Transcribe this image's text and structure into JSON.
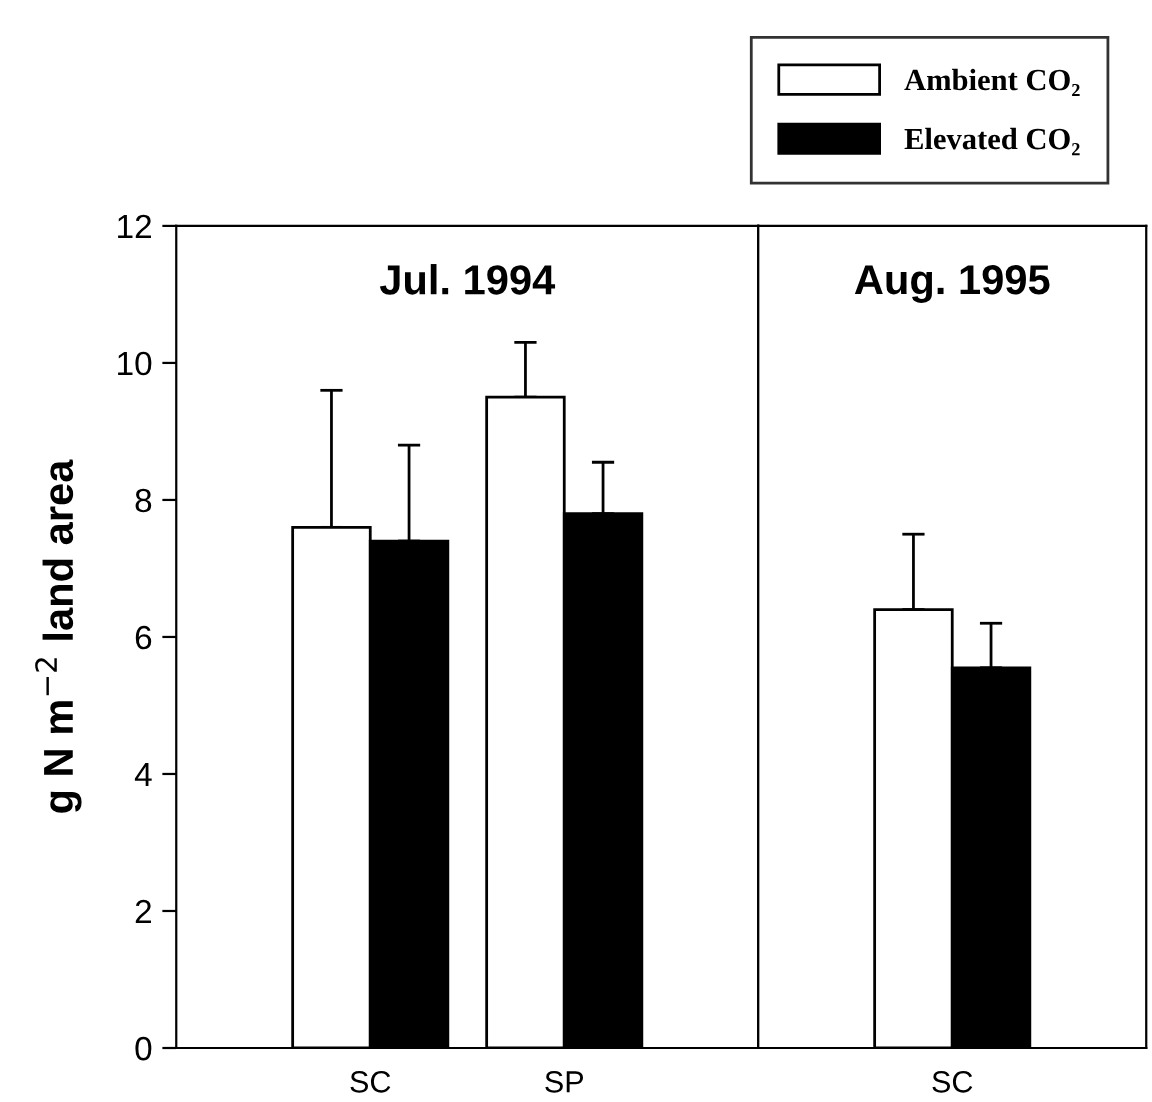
{
  "chart_data": [
    {
      "type": "bar",
      "title": "Jul. 1994",
      "ylabel": "g N m$^{−2}$ land area",
      "categories": [
        "SC",
        "SP"
      ],
      "ylim": [
        0,
        12
      ],
      "yticks": [
        0,
        2,
        4,
        6,
        8,
        10,
        12
      ],
      "grid": false,
      "legend": "top right",
      "series": [
        {
          "name": "Ambient CO₂",
          "color": "#ffffff",
          "values": [
            7.6,
            9.5
          ],
          "errors": [
            [
              7.6,
              9.6
            ],
            [
              9.5,
              10.3
            ]
          ]
        },
        {
          "name": "Elevated CO₂",
          "color": "#000000",
          "values": [
            7.4,
            7.8
          ],
          "errors": [
            [
              7.4,
              8.8
            ],
            [
              7.8,
              8.55
            ]
          ]
        }
      ]
    },
    {
      "type": "bar",
      "title": "Aug. 1995",
      "categories": [
        "SC"
      ],
      "ylim": [
        0,
        12
      ],
      "tick_labels": "x",
      "grid": false,
      "series": [
        {
          "color": "#ffffff",
          "values": [
            6.4
          ],
          "errors": [
            [
              6.4,
              7.5
            ]
          ]
        },
        {
          "color": "#000000",
          "values": [
            5.55
          ],
          "errors": [
            [
              5.55,
              6.2
            ]
          ]
        }
      ]
    }
  ]
}
